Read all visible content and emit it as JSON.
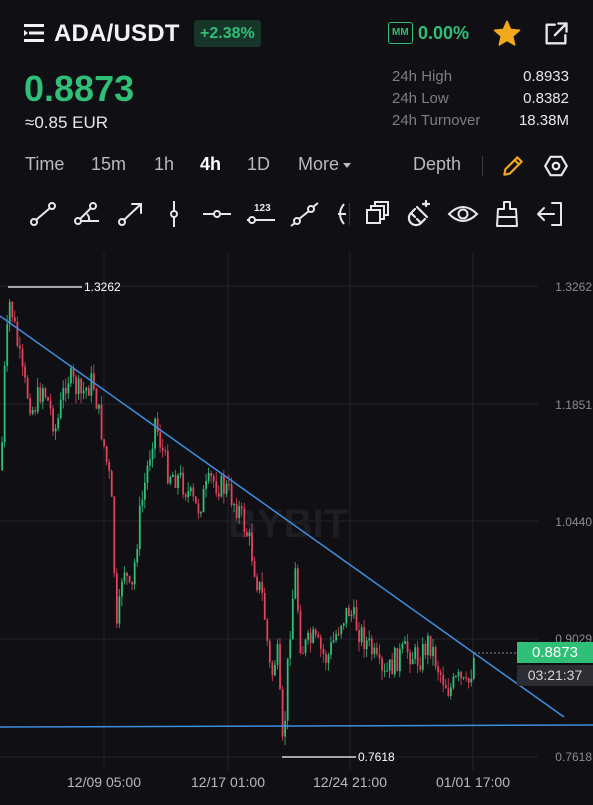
{
  "header": {
    "pair": "ADA/USDT",
    "change": "+2.38%",
    "mm_badge": "MM",
    "mm_value": "0.00%",
    "icons": [
      "menu-icon",
      "star-icon",
      "share-icon"
    ]
  },
  "ticker": {
    "last_price": "0.8873",
    "fiat_equiv": "≈0.85 EUR",
    "stats": [
      {
        "label": "24h High",
        "value": "0.8933"
      },
      {
        "label": "24h Low",
        "value": "0.8382"
      },
      {
        "label": "24h Turnover",
        "value": "18.38M"
      }
    ]
  },
  "intervals": {
    "items": [
      "Time",
      "15m",
      "1h",
      "4h",
      "1D",
      "More"
    ],
    "active": "4h",
    "depth_label": "Depth"
  },
  "drawing_tools": [
    "line-segment-icon",
    "angle-line-icon",
    "arrow-line-icon",
    "vertical-line-icon",
    "horizontal-line-icon",
    "price-label-icon",
    "extended-line-icon",
    "ray-icon",
    "layers-icon",
    "magnet-icon",
    "eye-icon",
    "eraser-icon",
    "exit-icon"
  ],
  "chart": {
    "watermark": "BYBIT",
    "y_ticks": [
      "1.3262",
      "1.1851",
      "1.0440",
      "0.9029",
      "0.7618"
    ],
    "x_ticks": [
      "12/09 05:00",
      "12/17 01:00",
      "12/24 21:00",
      "01/01 17:00"
    ],
    "high_marker": "1.3262",
    "low_marker": "0.7618",
    "last_price_tag": "0.8873",
    "countdown": "03:21:37",
    "colors": {
      "up": "#2fbf77",
      "down": "#e0435b",
      "trend": "#3d8fe0",
      "accent": "#2fbf77",
      "star": "#f0a81c"
    }
  }
}
